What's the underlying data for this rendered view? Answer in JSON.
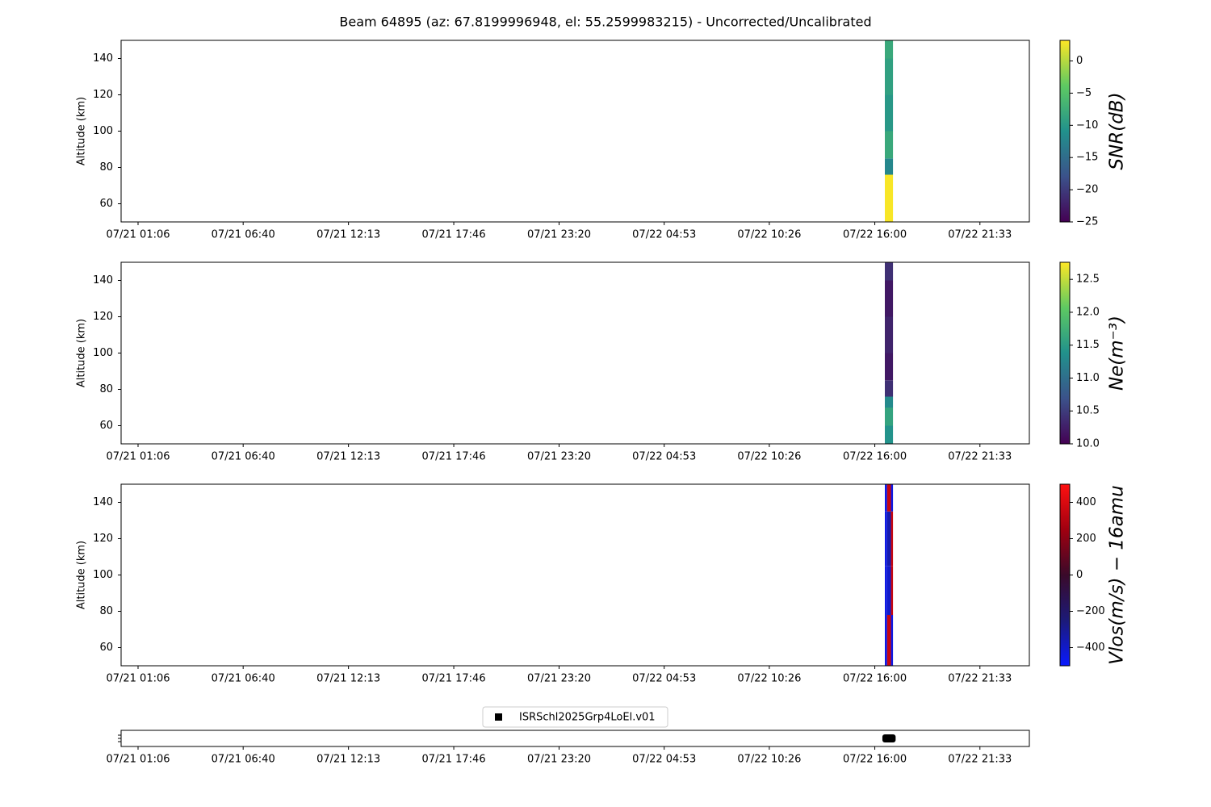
{
  "chart_data": [
    {
      "type": "heatmap",
      "title": "Beam 64895 (az: 67.8199996948, el: 55.2599983215) - Uncorrected/Uncalibrated",
      "ylabel": "Altitude (km)",
      "xlim": [
        -0.895,
        47.06
      ],
      "ylim": [
        50,
        150
      ],
      "yticks": [
        60,
        80,
        100,
        120,
        140
      ],
      "xticks": [
        {
          "value": 0,
          "label": "07/21 01:06"
        },
        {
          "value": 5.55,
          "label": "07/21 06:40"
        },
        {
          "value": 11.11,
          "label": "07/21 12:13"
        },
        {
          "value": 16.67,
          "label": "07/21 17:46"
        },
        {
          "value": 22.23,
          "label": "07/21 23:20"
        },
        {
          "value": 27.78,
          "label": "07/22 04:53"
        },
        {
          "value": 33.33,
          "label": "07/22 10:26"
        },
        {
          "value": 38.9,
          "label": "07/22 16:00"
        },
        {
          "value": 44.45,
          "label": "07/22 21:33"
        }
      ],
      "colormap": "viridis",
      "clim": [
        -25,
        3.2
      ],
      "cticks": [
        {
          "value": -25,
          "label": "−25"
        },
        {
          "value": -20,
          "label": "−20"
        },
        {
          "value": -15,
          "label": "−15"
        },
        {
          "value": -10,
          "label": "−10"
        },
        {
          "value": -5,
          "label": "−5"
        },
        0
      ],
      "clabel": "SNR(dB)",
      "cells": {
        "x": [
          39.43,
          39.86
        ],
        "y": [
          50,
          60,
          70,
          76,
          85,
          100,
          120,
          140,
          150
        ],
        "values": [
          [
            3
          ],
          [
            3
          ],
          [
            3
          ],
          [
            -12
          ],
          [
            -8
          ],
          [
            -10
          ],
          [
            -9
          ],
          [
            -8
          ]
        ]
      }
    },
    {
      "type": "heatmap",
      "ylabel": "Altitude (km)",
      "xlim": [
        -0.895,
        47.06
      ],
      "ylim": [
        50,
        150
      ],
      "yticks": [
        60,
        80,
        100,
        120,
        140
      ],
      "xticks": [
        {
          "value": 0,
          "label": "07/21 01:06"
        },
        {
          "value": 5.55,
          "label": "07/21 06:40"
        },
        {
          "value": 11.11,
          "label": "07/21 12:13"
        },
        {
          "value": 16.67,
          "label": "07/21 17:46"
        },
        {
          "value": 22.23,
          "label": "07/21 23:20"
        },
        {
          "value": 27.78,
          "label": "07/22 04:53"
        },
        {
          "value": 33.33,
          "label": "07/22 10:26"
        },
        {
          "value": 38.9,
          "label": "07/22 16:00"
        },
        {
          "value": 44.45,
          "label": "07/22 21:33"
        }
      ],
      "colormap": "viridis",
      "clim": [
        10.0,
        12.76
      ],
      "cticks": [
        {
          "value": 10,
          "label": "10.0"
        },
        10.5,
        {
          "value": 11,
          "label": "11.0"
        },
        11.5,
        {
          "value": 12,
          "label": "12.0"
        },
        12.5
      ],
      "clabel": "Ne(m⁻³)",
      "cells": {
        "x": [
          39.43,
          39.86
        ],
        "y": [
          50,
          60,
          70,
          76,
          85,
          100,
          120,
          140,
          150
        ],
        "values": [
          [
            11.4
          ],
          [
            11.6
          ],
          [
            11.3
          ],
          [
            10.4
          ],
          [
            10.2
          ],
          [
            10.3
          ],
          [
            10.2
          ],
          [
            10.4
          ]
        ]
      }
    },
    {
      "type": "heatmap",
      "ylabel": "Altitude (km)",
      "xlim": [
        -0.895,
        47.06
      ],
      "ylim": [
        50,
        150
      ],
      "yticks": [
        60,
        80,
        100,
        120,
        140
      ],
      "xticks": [
        {
          "value": 0,
          "label": "07/21 01:06"
        },
        {
          "value": 5.55,
          "label": "07/21 06:40"
        },
        {
          "value": 11.11,
          "label": "07/21 12:13"
        },
        {
          "value": 16.67,
          "label": "07/21 17:46"
        },
        {
          "value": 22.23,
          "label": "07/21 23:20"
        },
        {
          "value": 27.78,
          "label": "07/22 04:53"
        },
        {
          "value": 33.33,
          "label": "07/22 10:26"
        },
        {
          "value": 38.9,
          "label": "07/22 16:00"
        },
        {
          "value": 44.45,
          "label": "07/22 21:33"
        }
      ],
      "colormap": "bluered",
      "clim": [
        -500,
        500
      ],
      "cticks": [
        {
          "value": -400,
          "label": "−400"
        },
        {
          "value": -200,
          "label": "−200"
        },
        0,
        200,
        400
      ],
      "clabel": "Vlos(m/s) − 16amu",
      "cells": {
        "x": [
          39.43,
          39.55,
          39.75,
          39.86
        ],
        "y": [
          50,
          78,
          105,
          135,
          150
        ],
        "values": [
          [
            -450,
            350,
            -450
          ],
          [
            -450,
            -400,
            350
          ],
          [
            -450,
            -350,
            350
          ],
          [
            -450,
            350,
            -450
          ]
        ]
      }
    },
    {
      "type": "timeline",
      "xlim": [
        -0.895,
        47.06
      ],
      "xticks": [
        {
          "value": 0,
          "label": "07/21 01:06"
        },
        {
          "value": 5.55,
          "label": "07/21 06:40"
        },
        {
          "value": 11.11,
          "label": "07/21 12:13"
        },
        {
          "value": 16.67,
          "label": "07/21 17:46"
        },
        {
          "value": 22.23,
          "label": "07/21 23:20"
        },
        {
          "value": 27.78,
          "label": "07/22 04:53"
        },
        {
          "value": 33.33,
          "label": "07/22 10:26"
        },
        {
          "value": 38.9,
          "label": "07/22 16:00"
        },
        {
          "value": 44.45,
          "label": "07/22 21:33"
        }
      ],
      "series": [
        {
          "name": "ISRSchl2025Grp4LoEl.v01",
          "color": "#000000",
          "x": [
            39.3,
            40.0
          ]
        }
      ]
    }
  ]
}
